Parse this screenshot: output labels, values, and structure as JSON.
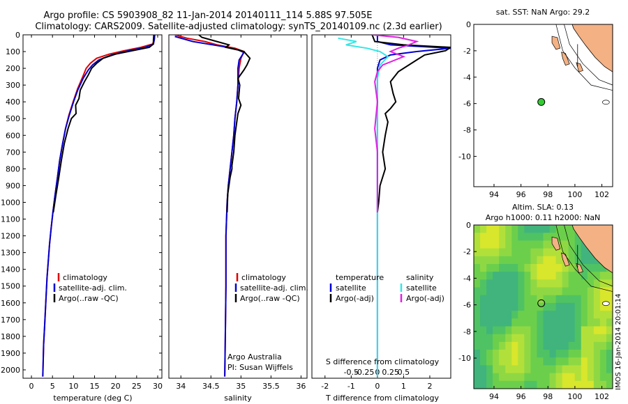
{
  "title_line1": "Argo profile: CS 5903908_82 11-Jan-2014 20140111_114 5.88S 97.505E",
  "title_line2": "Climatology: CARS2009. Satellite-adjusted climatology: synTS_20140109.nc (2.3d earlier)",
  "timestamp": "IMOS 16-Jan-2014 20:01:14",
  "colors": {
    "climatology": "#e00000",
    "satellite": "#0000d0",
    "argo": "#000000",
    "sal_satellite": "#33e6e6",
    "sal_argo": "#e020e0",
    "land": "#f4b183",
    "ocean_bg": "#ffffff"
  },
  "chart_data": [
    {
      "type": "line",
      "xlabel": "temperature (deg C)",
      "ylabel": "",
      "xlim": [
        -2,
        31
      ],
      "ylim": [
        2050,
        0
      ],
      "xticks": [
        0,
        5,
        10,
        15,
        20,
        25,
        30
      ],
      "yticks": [
        0,
        100,
        200,
        300,
        400,
        500,
        600,
        700,
        800,
        900,
        1000,
        1100,
        1200,
        1300,
        1400,
        1500,
        1600,
        1700,
        1800,
        1900,
        2000
      ],
      "legend": [
        "climatology",
        "satellite-adj. clim.",
        "Argo(..raw -QC)"
      ],
      "series": [
        {
          "name": "climatology",
          "color": "#e00000",
          "points": [
            [
              29.3,
              0
            ],
            [
              29.2,
              30
            ],
            [
              28.8,
              55
            ],
            [
              26,
              75
            ],
            [
              22,
              95
            ],
            [
              18.5,
              115
            ],
            [
              15.5,
              140
            ],
            [
              14,
              170
            ],
            [
              13,
              200
            ],
            [
              12.2,
              250
            ],
            [
              11,
              320
            ],
            [
              9.9,
              400
            ],
            [
              8.9,
              480
            ],
            [
              8.1,
              560
            ],
            [
              7.4,
              650
            ],
            [
              6.7,
              750
            ],
            [
              6.2,
              850
            ],
            [
              5.6,
              960
            ],
            [
              5.1,
              1060
            ],
            [
              4.7,
              1150
            ],
            [
              4.3,
              1250
            ],
            [
              4,
              1350
            ],
            [
              3.7,
              1450
            ],
            [
              3.5,
              1550
            ],
            [
              3.3,
              1650
            ],
            [
              3.1,
              1750
            ],
            [
              2.9,
              1850
            ],
            [
              2.8,
              1950
            ],
            [
              2.7,
              2040
            ]
          ]
        },
        {
          "name": "satellite-adj. clim.",
          "color": "#0000d0",
          "points": [
            [
              29.3,
              0
            ],
            [
              29.2,
              30
            ],
            [
              29.0,
              55
            ],
            [
              27,
              75
            ],
            [
              23,
              95
            ],
            [
              19,
              120
            ],
            [
              16,
              150
            ],
            [
              14.5,
              180
            ],
            [
              13.5,
              210
            ],
            [
              12.3,
              260
            ],
            [
              11,
              330
            ],
            [
              10,
              400
            ],
            [
              9,
              480
            ],
            [
              8.1,
              560
            ],
            [
              7.4,
              650
            ],
            [
              6.7,
              750
            ],
            [
              6.2,
              850
            ],
            [
              5.6,
              960
            ],
            [
              5.1,
              1060
            ],
            [
              4.7,
              1150
            ],
            [
              4.3,
              1250
            ],
            [
              4,
              1350
            ],
            [
              3.7,
              1450
            ],
            [
              3.5,
              1550
            ],
            [
              3.3,
              1650
            ],
            [
              3.1,
              1750
            ],
            [
              2.9,
              1850
            ],
            [
              2.8,
              1950
            ],
            [
              2.7,
              2040
            ]
          ]
        },
        {
          "name": "Argo(..raw -QC)",
          "color": "#000000",
          "points": [
            [
              29.1,
              0
            ],
            [
              29.0,
              30
            ],
            [
              29.0,
              55
            ],
            [
              28,
              75
            ],
            [
              24,
              95
            ],
            [
              20,
              115
            ],
            [
              17,
              140
            ],
            [
              15.5,
              170
            ],
            [
              14.3,
              200
            ],
            [
              13.5,
              240
            ],
            [
              12.6,
              280
            ],
            [
              11.6,
              330
            ],
            [
              11.3,
              380
            ],
            [
              10.5,
              420
            ],
            [
              10.6,
              470
            ],
            [
              9.5,
              500
            ],
            [
              8.7,
              560
            ],
            [
              7.8,
              650
            ],
            [
              7.1,
              750
            ],
            [
              6.5,
              850
            ],
            [
              5.8,
              960
            ],
            [
              5.2,
              1060
            ]
          ]
        }
      ]
    },
    {
      "type": "line",
      "xlabel": "salinity",
      "xlim": [
        33.8,
        36.1
      ],
      "ylim": [
        2050,
        0
      ],
      "xticks": [
        34,
        34.5,
        35,
        35.5,
        36
      ],
      "legend": [
        "climatology",
        "satellite-adj. clim.",
        "Argo(..raw -QC)"
      ],
      "annotation": [
        "Argo Australia",
        "PI: Susan Wijffels"
      ],
      "series": [
        {
          "name": "climatology",
          "color": "#e00000",
          "points": [
            [
              33.9,
              0
            ],
            [
              34.1,
              20
            ],
            [
              34.4,
              40
            ],
            [
              34.6,
              60
            ],
            [
              34.9,
              80
            ],
            [
              35.05,
              100
            ],
            [
              35.0,
              140
            ],
            [
              34.97,
              200
            ],
            [
              34.95,
              300
            ],
            [
              34.93,
              400
            ],
            [
              34.9,
              500
            ],
            [
              34.88,
              600
            ],
            [
              34.85,
              700
            ],
            [
              34.82,
              800
            ],
            [
              34.79,
              900
            ],
            [
              34.77,
              1000
            ],
            [
              34.75,
              1200
            ],
            [
              34.75,
              1500
            ],
            [
              34.74,
              1800
            ],
            [
              34.73,
              2040
            ]
          ]
        },
        {
          "name": "satellite-adj. clim.",
          "color": "#0000d0",
          "points": [
            [
              33.9,
              10
            ],
            [
              34.2,
              40
            ],
            [
              34.7,
              70
            ],
            [
              34.95,
              90
            ],
            [
              35.05,
              105
            ],
            [
              34.97,
              150
            ],
            [
              34.95,
              200
            ],
            [
              34.95,
              300
            ],
            [
              34.93,
              400
            ],
            [
              34.9,
              500
            ],
            [
              34.88,
              600
            ],
            [
              34.85,
              700
            ],
            [
              34.82,
              800
            ],
            [
              34.79,
              900
            ],
            [
              34.77,
              1000
            ],
            [
              34.75,
              1200
            ],
            [
              34.75,
              1500
            ],
            [
              34.74,
              1800
            ],
            [
              34.73,
              2040
            ]
          ]
        },
        {
          "name": "Argo(..raw -QC)",
          "color": "#000000",
          "points": [
            [
              34.3,
              0
            ],
            [
              34.35,
              15
            ],
            [
              34.6,
              40
            ],
            [
              34.8,
              60
            ],
            [
              34.75,
              75
            ],
            [
              34.95,
              90
            ],
            [
              35.05,
              100
            ],
            [
              35.1,
              120
            ],
            [
              35.15,
              140
            ],
            [
              35.1,
              180
            ],
            [
              35.05,
              210
            ],
            [
              34.95,
              260
            ],
            [
              34.98,
              300
            ],
            [
              34.96,
              380
            ],
            [
              35.0,
              420
            ],
            [
              34.95,
              470
            ],
            [
              34.93,
              520
            ],
            [
              34.9,
              600
            ],
            [
              34.88,
              700
            ],
            [
              34.85,
              780
            ],
            [
              34.85,
              800
            ],
            [
              34.82,
              850
            ],
            [
              34.78,
              950
            ],
            [
              34.77,
              1060
            ]
          ]
        }
      ]
    },
    {
      "type": "line",
      "xlabel": "T difference from climatology",
      "xlabel_top": "S difference from climatology",
      "xlim": [
        -2.5,
        2.8
      ],
      "ylim": [
        2050,
        0
      ],
      "xticks": [
        -2,
        -1,
        0,
        1,
        2
      ],
      "xticks_top": [
        "-0.5",
        "-0.25",
        "0",
        "0.25",
        "0.5"
      ],
      "legend_headers": [
        "temperature",
        "salinity"
      ],
      "legend": [
        "satellite",
        "Argo(-adj)",
        "satellite",
        "Argo(-adj)"
      ],
      "series": [
        {
          "name": "satellite",
          "color": "#0000d0",
          "points": [
            [
              0,
              0
            ],
            [
              0,
              40
            ],
            [
              0.5,
              60
            ],
            [
              2.8,
              80
            ],
            [
              1.5,
              100
            ],
            [
              0.5,
              120
            ],
            [
              0.1,
              150
            ],
            [
              0,
              200
            ],
            [
              0,
              2040
            ]
          ]
        },
        {
          "name": "Argo(-adj)",
          "color": "#000000",
          "points": [
            [
              -0.2,
              0
            ],
            [
              -0.1,
              40
            ],
            [
              1.0,
              60
            ],
            [
              2.8,
              75
            ],
            [
              2.6,
              95
            ],
            [
              1.8,
              120
            ],
            [
              1.4,
              160
            ],
            [
              0.8,
              220
            ],
            [
              0.5,
              280
            ],
            [
              0.6,
              350
            ],
            [
              0.7,
              400
            ],
            [
              0.5,
              440
            ],
            [
              0.3,
              470
            ],
            [
              0.4,
              520
            ],
            [
              0.3,
              600
            ],
            [
              0.2,
              700
            ],
            [
              0.3,
              800
            ],
            [
              0.1,
              900
            ],
            [
              0.05,
              1000
            ],
            [
              0,
              1060
            ]
          ]
        },
        {
          "name": "sal-satellite",
          "color": "#33e6e6",
          "points": [
            [
              -1.5,
              20
            ],
            [
              -0.8,
              40
            ],
            [
              -1.2,
              60
            ],
            [
              -0.4,
              80
            ],
            [
              0.1,
              100
            ],
            [
              0.4,
              130
            ],
            [
              0.1,
              180
            ],
            [
              0,
              260
            ],
            [
              0,
              2040
            ]
          ]
        },
        {
          "name": "sal-Argo(-adj)",
          "color": "#e020e0",
          "points": [
            [
              -0.2,
              0
            ],
            [
              0.8,
              15
            ],
            [
              1.5,
              40
            ],
            [
              1.2,
              60
            ],
            [
              0.8,
              80
            ],
            [
              0.5,
              100
            ],
            [
              1.0,
              130
            ],
            [
              0.2,
              180
            ],
            [
              0,
              220
            ],
            [
              -0.1,
              280
            ],
            [
              0.0,
              400
            ],
            [
              -0.1,
              560
            ],
            [
              0,
              700
            ],
            [
              0,
              1060
            ]
          ]
        }
      ]
    },
    {
      "type": "map",
      "title": "sat. SST: NaN Argo: 29.2",
      "xlim": [
        92.5,
        102.8
      ],
      "ylim": [
        -12.3,
        0
      ],
      "xticks": [
        94,
        96,
        98,
        100,
        102
      ],
      "yticks": [
        0,
        -2,
        -4,
        -6,
        -8,
        -10
      ],
      "marker": {
        "lon": 97.505,
        "lat": -5.88
      }
    },
    {
      "type": "heatmap",
      "title_line1": "Altim. SLA: 0.13",
      "title_line2": "Argo h1000: 0.11 h2000: NaN",
      "xlim": [
        92.5,
        102.8
      ],
      "ylim": [
        -12.3,
        0
      ],
      "xticks": [
        94,
        96,
        98,
        100,
        102
      ],
      "yticks": [
        0,
        -2,
        -4,
        -6,
        -8,
        -10
      ],
      "marker": {
        "lon": 97.505,
        "lat": -5.88
      }
    }
  ]
}
